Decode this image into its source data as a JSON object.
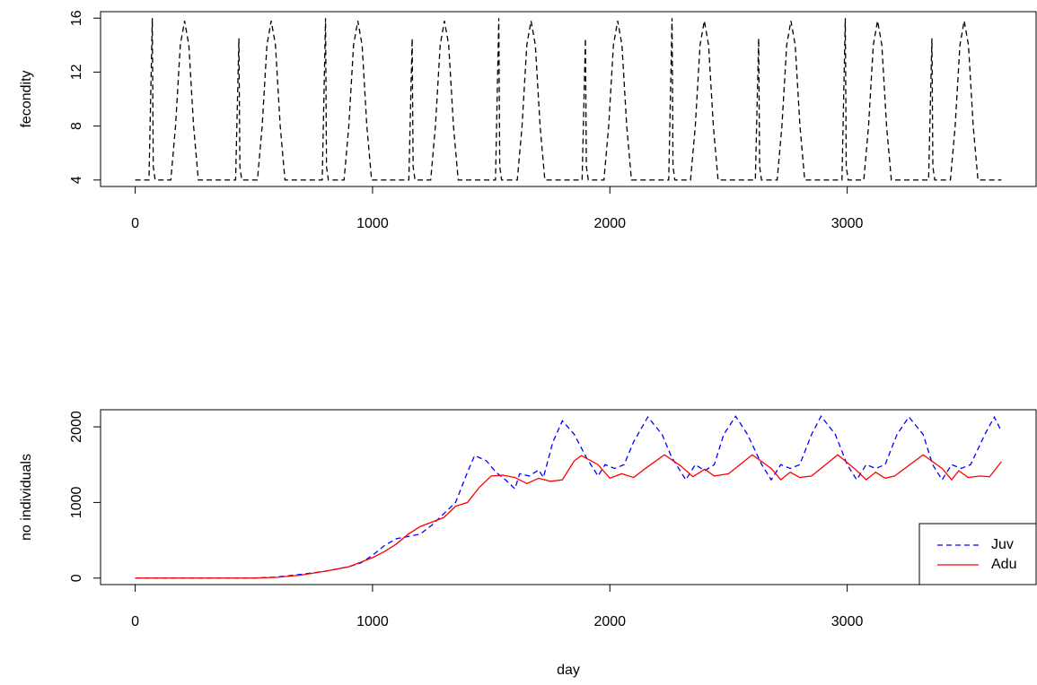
{
  "chart_data": [
    {
      "type": "line",
      "ylabel": "fecondity",
      "xlim": [
        -146,
        3796
      ],
      "ylim": [
        3.52,
        16.48
      ],
      "xticks": [
        0,
        1000,
        2000,
        3000
      ],
      "yticks": [
        4,
        8,
        12,
        16
      ],
      "series": [
        {
          "color": "#000000",
          "linestyle": "dashed",
          "x": [
            0,
            58,
            72,
            76,
            84,
            150,
            170,
            190,
            208,
            226,
            246,
            266,
            365,
            423,
            437,
            441,
            449,
            515,
            535,
            555,
            573,
            591,
            611,
            631,
            730,
            788,
            802,
            806,
            814,
            880,
            900,
            920,
            938,
            956,
            976,
            996,
            1095,
            1153,
            1167,
            1171,
            1179,
            1245,
            1265,
            1285,
            1303,
            1321,
            1341,
            1361,
            1460,
            1518,
            1532,
            1536,
            1544,
            1610,
            1630,
            1650,
            1668,
            1686,
            1706,
            1726,
            1825,
            1883,
            1897,
            1901,
            1909,
            1975,
            1995,
            2015,
            2033,
            2051,
            2071,
            2091,
            2190,
            2248,
            2262,
            2266,
            2274,
            2340,
            2360,
            2380,
            2398,
            2416,
            2436,
            2456,
            2555,
            2613,
            2627,
            2631,
            2639,
            2705,
            2725,
            2745,
            2763,
            2781,
            2801,
            2821,
            2920,
            2978,
            2992,
            2996,
            3004,
            3070,
            3090,
            3110,
            3128,
            3146,
            3166,
            3186,
            3285,
            3343,
            3357,
            3361,
            3369,
            3435,
            3455,
            3475,
            3493,
            3511,
            3531,
            3551,
            3650
          ],
          "values": [
            4,
            4,
            16,
            5,
            4,
            4,
            8,
            14,
            15.8,
            14,
            8,
            4,
            4,
            4,
            14.5,
            5,
            4,
            4,
            8,
            14,
            15.8,
            14,
            8,
            4,
            4,
            4,
            16,
            5,
            4,
            4,
            8,
            14,
            15.8,
            14,
            8,
            4,
            4,
            4,
            14.5,
            5,
            4,
            4,
            8,
            14,
            15.8,
            14,
            8,
            4,
            4,
            4,
            16,
            5,
            4,
            4,
            8,
            14,
            15.8,
            14,
            8,
            4,
            4,
            4,
            14.5,
            5,
            4,
            4,
            8,
            14,
            15.8,
            14,
            8,
            4,
            4,
            4,
            16,
            5,
            4,
            4,
            8,
            14,
            15.8,
            14,
            8,
            4,
            4,
            4,
            14.5,
            5,
            4,
            4,
            8,
            14,
            15.8,
            14,
            8,
            4,
            4,
            4,
            16,
            5,
            4,
            4,
            8,
            14,
            15.8,
            14,
            8,
            4,
            4,
            4,
            14.5,
            5,
            4,
            4,
            8,
            14,
            15.8,
            14,
            8,
            4,
            4
          ]
        }
      ]
    },
    {
      "type": "line",
      "ylabel": "no individuals",
      "xlabel": "day",
      "xlim": [
        -146,
        3796
      ],
      "ylim": [
        -86,
        2226
      ],
      "xticks": [
        0,
        1000,
        2000,
        3000
      ],
      "yticks": [
        0,
        1000,
        2000
      ],
      "legend": "bottomright",
      "series": [
        {
          "name": "Juv",
          "color": "#0000ff",
          "linestyle": "dashed",
          "x": [
            0,
            500,
            600,
            700,
            800,
            900,
            950,
            1000,
            1050,
            1100,
            1150,
            1200,
            1250,
            1300,
            1350,
            1400,
            1430,
            1480,
            1520,
            1560,
            1600,
            1620,
            1660,
            1700,
            1720,
            1760,
            1800,
            1850,
            1900,
            1950,
            1980,
            2020,
            2060,
            2100,
            2160,
            2220,
            2260,
            2320,
            2360,
            2400,
            2440,
            2480,
            2530,
            2580,
            2640,
            2680,
            2720,
            2760,
            2800,
            2850,
            2890,
            2950,
            3000,
            3040,
            3080,
            3120,
            3160,
            3210,
            3260,
            3320,
            3360,
            3400,
            3440,
            3480,
            3520,
            3580,
            3620,
            3650
          ],
          "values": [
            0,
            0,
            15,
            50,
            90,
            150,
            200,
            300,
            430,
            520,
            550,
            580,
            700,
            850,
            1000,
            1400,
            1620,
            1550,
            1400,
            1300,
            1180,
            1380,
            1350,
            1430,
            1330,
            1800,
            2080,
            1900,
            1600,
            1350,
            1500,
            1450,
            1500,
            1800,
            2130,
            1900,
            1600,
            1300,
            1500,
            1420,
            1500,
            1900,
            2140,
            1900,
            1500,
            1300,
            1500,
            1450,
            1500,
            1900,
            2140,
            1900,
            1500,
            1300,
            1500,
            1450,
            1500,
            1900,
            2130,
            1900,
            1500,
            1300,
            1500,
            1450,
            1500,
            1900,
            2130,
            1940
          ]
        },
        {
          "name": "Adu",
          "color": "#ff0000",
          "linestyle": "solid",
          "x": [
            0,
            500,
            600,
            700,
            800,
            900,
            1000,
            1050,
            1100,
            1150,
            1200,
            1300,
            1350,
            1400,
            1450,
            1500,
            1550,
            1600,
            1650,
            1700,
            1750,
            1800,
            1850,
            1880,
            1950,
            2000,
            2050,
            2100,
            2150,
            2230,
            2300,
            2350,
            2400,
            2440,
            2500,
            2600,
            2680,
            2720,
            2760,
            2800,
            2850,
            2960,
            3030,
            3080,
            3120,
            3160,
            3200,
            3320,
            3400,
            3440,
            3470,
            3510,
            3560,
            3600,
            3650
          ],
          "values": [
            0,
            0,
            10,
            40,
            90,
            150,
            270,
            350,
            450,
            580,
            680,
            800,
            950,
            1000,
            1200,
            1350,
            1360,
            1330,
            1250,
            1320,
            1280,
            1300,
            1550,
            1620,
            1500,
            1320,
            1380,
            1330,
            1450,
            1630,
            1480,
            1340,
            1440,
            1350,
            1380,
            1630,
            1450,
            1300,
            1400,
            1330,
            1350,
            1630,
            1450,
            1300,
            1400,
            1320,
            1350,
            1630,
            1450,
            1300,
            1420,
            1330,
            1350,
            1340,
            1540
          ]
        }
      ]
    }
  ]
}
